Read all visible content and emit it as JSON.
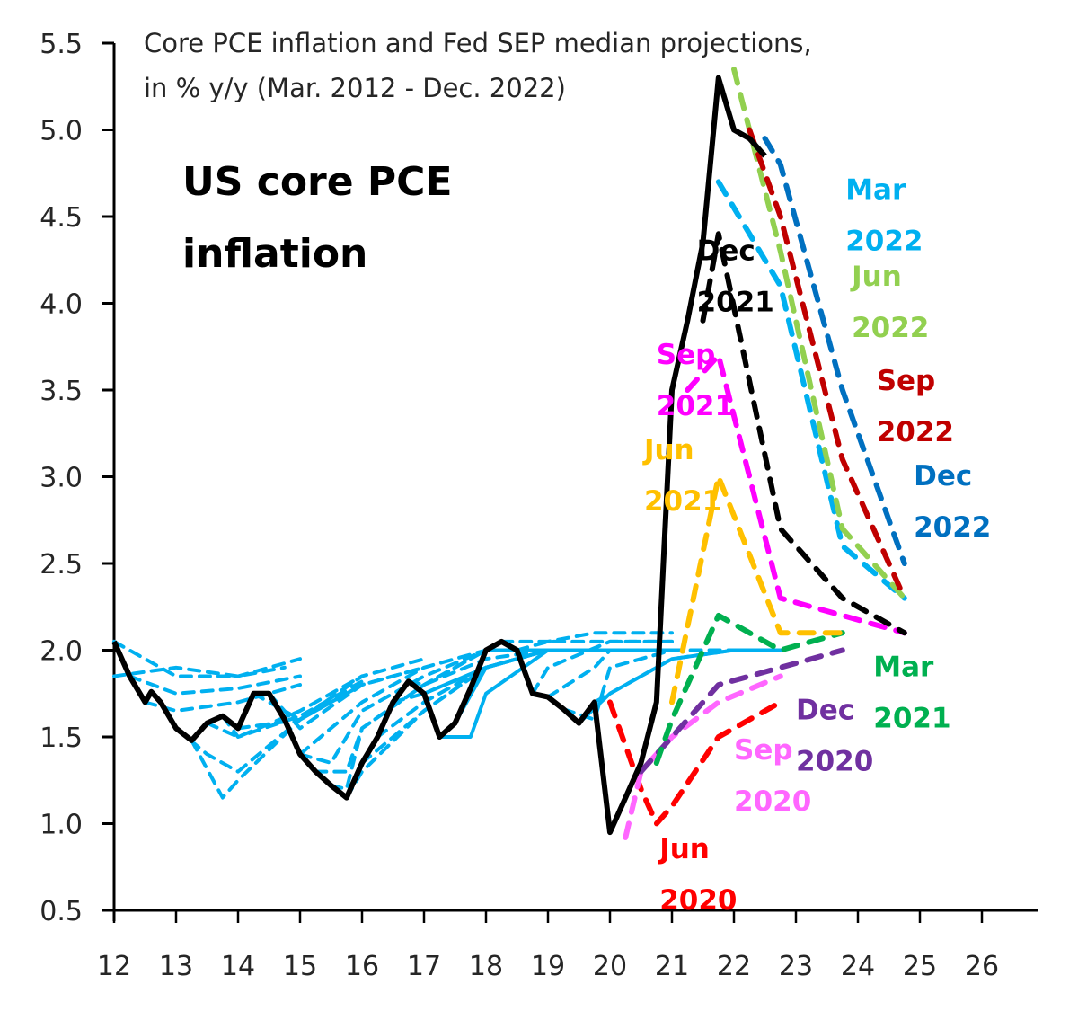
{
  "chart_data": {
    "type": "line",
    "title": "Core PCE inflation and Fed SEP median projections,",
    "subtitle": "in % y/y (Mar. 2012 - Dec. 2022)",
    "annotation": [
      "US core PCE",
      "inflation"
    ],
    "xlabel": "",
    "ylabel": "",
    "xlim": [
      12,
      26.8
    ],
    "ylim": [
      0.5,
      5.5
    ],
    "grid": false,
    "legend": "inline-labels",
    "x_ticks": [
      12,
      13,
      14,
      15,
      16,
      17,
      18,
      19,
      20,
      21,
      22,
      23,
      24,
      25,
      26
    ],
    "x_tick_labels": [
      "12",
      "13",
      "14",
      "15",
      "16",
      "17",
      "18",
      "19",
      "20",
      "21",
      "22",
      "23",
      "24",
      "25",
      "26"
    ],
    "y_ticks": [
      0.5,
      1.0,
      1.5,
      2.0,
      2.5,
      3.0,
      3.5,
      4.0,
      4.5,
      5.0,
      5.5
    ],
    "y_tick_labels": [
      "0.5",
      "1.0",
      "1.5",
      "2.0",
      "2.5",
      "3.0",
      "3.5",
      "4.0",
      "4.5",
      "5.0",
      "5.5"
    ],
    "actual": {
      "name": "US core PCE inflation",
      "color": "#000000",
      "style": "solid",
      "x": [
        12.0,
        12.25,
        12.5,
        12.6,
        12.75,
        13.0,
        13.25,
        13.5,
        13.75,
        14.0,
        14.25,
        14.5,
        14.75,
        15.0,
        15.25,
        15.5,
        15.75,
        16.0,
        16.25,
        16.5,
        16.75,
        17.0,
        17.25,
        17.5,
        17.75,
        18.0,
        18.25,
        18.5,
        18.75,
        19.0,
        19.25,
        19.5,
        19.75,
        20.0,
        20.25,
        20.5,
        20.75,
        21.0,
        21.25,
        21.5,
        21.75,
        22.0,
        22.25,
        22.5
      ],
      "y": [
        2.05,
        1.85,
        1.7,
        1.76,
        1.7,
        1.55,
        1.48,
        1.58,
        1.62,
        1.55,
        1.75,
        1.75,
        1.6,
        1.4,
        1.3,
        1.22,
        1.15,
        1.35,
        1.5,
        1.7,
        1.82,
        1.75,
        1.5,
        1.58,
        1.78,
        2.0,
        2.05,
        2.0,
        1.75,
        1.73,
        1.66,
        1.58,
        1.7,
        0.95,
        1.15,
        1.35,
        1.7,
        3.5,
        3.9,
        4.35,
        5.3,
        5.0,
        4.95,
        4.85
      ]
    },
    "series": [
      {
        "name": "Mar 2012",
        "label": "",
        "color": "#00B0F0",
        "style": "dashed",
        "x": [
          12.0,
          13.0,
          14.0,
          14.75
        ],
        "y": [
          1.85,
          1.9,
          1.85,
          1.9
        ]
      },
      {
        "name": "Jun 2012",
        "label": "",
        "color": "#00B0F0",
        "style": "dashed",
        "x": [
          12.0,
          13.0,
          14.0,
          15.0
        ],
        "y": [
          2.05,
          1.85,
          1.85,
          1.95
        ]
      },
      {
        "name": "Sep 2012",
        "label": "",
        "color": "#00B0F0",
        "style": "dashed",
        "x": [
          12.25,
          13.0,
          14.0,
          15.0
        ],
        "y": [
          1.85,
          1.75,
          1.78,
          1.85
        ]
      },
      {
        "name": "Dec 2012",
        "label": "",
        "color": "#00B0F0",
        "style": "dashed",
        "x": [
          12.5,
          13.0,
          14.0,
          15.0
        ],
        "y": [
          1.7,
          1.65,
          1.7,
          1.8
        ]
      },
      {
        "name": "Mar 2013",
        "label": "",
        "color": "#00B0F0",
        "style": "dashed",
        "x": [
          13.0,
          13.5,
          14.0,
          15.0,
          16.0
        ],
        "y": [
          1.55,
          1.4,
          1.3,
          1.6,
          1.8
        ]
      },
      {
        "name": "Jun 2013",
        "label": "",
        "color": "#00B0F0",
        "style": "dashed",
        "x": [
          13.25,
          13.75,
          14.0,
          15.0,
          16.0
        ],
        "y": [
          1.48,
          1.15,
          1.25,
          1.6,
          1.85
        ]
      },
      {
        "name": "Sep 2013",
        "label": "",
        "color": "#00B0F0",
        "style": "dashed",
        "x": [
          13.5,
          14.0,
          15.0,
          16.0
        ],
        "y": [
          1.58,
          1.5,
          1.65,
          1.85
        ]
      },
      {
        "name": "Dec 2013",
        "label": "",
        "color": "#00B0F0",
        "style": "dashed",
        "x": [
          13.75,
          14.0,
          15.0,
          16.0
        ],
        "y": [
          1.62,
          1.5,
          1.62,
          1.82
        ]
      },
      {
        "name": "Mar 2014",
        "label": "",
        "color": "#00B0F0",
        "style": "dashed",
        "x": [
          14.0,
          15.0,
          16.0,
          17.0
        ],
        "y": [
          1.55,
          1.6,
          1.85,
          1.95
        ]
      },
      {
        "name": "Jun 2014",
        "label": "",
        "color": "#00B0F0",
        "style": "dashed",
        "x": [
          14.25,
          15.0,
          16.0,
          17.0
        ],
        "y": [
          1.75,
          1.6,
          1.8,
          1.9
        ]
      },
      {
        "name": "Sep 2014",
        "label": "",
        "color": "#00B0F0",
        "style": "dashed",
        "x": [
          14.5,
          15.0,
          16.0,
          17.0
        ],
        "y": [
          1.75,
          1.55,
          1.8,
          1.9
        ]
      },
      {
        "name": "Dec 2014",
        "label": "",
        "color": "#00B0F0",
        "style": "dashed",
        "x": [
          14.75,
          15.0,
          16.0,
          17.0,
          18.0
        ],
        "y": [
          1.6,
          1.4,
          1.7,
          1.9,
          2.0
        ]
      },
      {
        "name": "Mar 2015",
        "label": "",
        "color": "#00B0F0",
        "style": "dashed",
        "x": [
          15.0,
          15.5,
          16.0,
          17.0,
          18.0
        ],
        "y": [
          1.4,
          1.35,
          1.65,
          1.85,
          2.0
        ]
      },
      {
        "name": "Jun 2015",
        "label": "",
        "color": "#00B0F0",
        "style": "dashed",
        "x": [
          15.25,
          15.75,
          16.0,
          17.0,
          18.0
        ],
        "y": [
          1.3,
          1.3,
          1.55,
          1.8,
          2.0
        ]
      },
      {
        "name": "Sep 2015",
        "label": "",
        "color": "#00B0F0",
        "style": "dashed",
        "x": [
          15.5,
          15.75,
          16.0,
          17.0,
          18.0
        ],
        "y": [
          1.22,
          1.2,
          1.55,
          1.8,
          2.0
        ]
      },
      {
        "name": "Dec 2015",
        "label": "",
        "color": "#00B0F0",
        "style": "dashed",
        "x": [
          15.75,
          16.0,
          17.0,
          18.0
        ],
        "y": [
          1.15,
          1.3,
          1.65,
          1.9
        ]
      },
      {
        "name": "Mar 2016",
        "label": "",
        "color": "#00B0F0",
        "style": "dashed",
        "x": [
          16.0,
          17.0,
          18.0,
          19.0
        ],
        "y": [
          1.35,
          1.65,
          1.9,
          2.0
        ]
      },
      {
        "name": "Jun 2016",
        "label": "",
        "color": "#00B0F0",
        "style": "dashed",
        "x": [
          16.25,
          17.0,
          18.0,
          19.0
        ],
        "y": [
          1.5,
          1.7,
          1.9,
          2.0
        ]
      },
      {
        "name": "Sep 2016",
        "label": "",
        "color": "#00B0F0",
        "style": "dashed",
        "x": [
          16.5,
          17.0,
          18.0,
          19.0
        ],
        "y": [
          1.7,
          1.75,
          1.9,
          2.0
        ]
      },
      {
        "name": "Dec 2016",
        "label": "",
        "color": "#00B0F0",
        "style": "dashed",
        "x": [
          16.75,
          17.0,
          18.0,
          19.0
        ],
        "y": [
          1.82,
          1.8,
          1.95,
          2.0
        ]
      },
      {
        "name": "Mar 2017",
        "label": "",
        "color": "#00B0F0",
        "style": "solid",
        "x": [
          17.0,
          18.0,
          19.0,
          20.0
        ],
        "y": [
          1.75,
          1.9,
          2.0,
          2.0
        ]
      },
      {
        "name": "Jun 2017",
        "label": "",
        "color": "#00B0F0",
        "style": "solid",
        "x": [
          17.25,
          17.75,
          18.0,
          19.0,
          20.0
        ],
        "y": [
          1.5,
          1.5,
          1.75,
          2.0,
          2.0
        ]
      },
      {
        "name": "Sep 2017",
        "label": "",
        "color": "#00B0F0",
        "style": "solid",
        "x": [
          17.5,
          18.0,
          19.0,
          20.0
        ],
        "y": [
          1.58,
          1.9,
          2.0,
          2.0
        ]
      },
      {
        "name": "Dec 2017",
        "label": "",
        "color": "#00B0F0",
        "style": "solid",
        "x": [
          17.75,
          18.0,
          19.0,
          20.0
        ],
        "y": [
          1.78,
          1.9,
          2.0,
          2.0
        ]
      },
      {
        "name": "Mar 2018",
        "label": "",
        "color": "#00B0F0",
        "style": "solid",
        "x": [
          18.0,
          19.0,
          20.0,
          21.0
        ],
        "y": [
          2.0,
          2.0,
          2.0,
          2.0
        ]
      },
      {
        "name": "Jun 2018",
        "label": "",
        "color": "#00B0F0",
        "style": "dashed",
        "x": [
          18.25,
          19.0,
          19.75,
          20.0,
          21.0
        ],
        "y": [
          2.05,
          2.05,
          2.1,
          2.1,
          2.1
        ]
      },
      {
        "name": "Sep 2018",
        "label": "",
        "color": "#00B0F0",
        "style": "dashed",
        "x": [
          18.5,
          19.0,
          20.0,
          21.0
        ],
        "y": [
          2.0,
          2.05,
          2.05,
          2.05
        ]
      },
      {
        "name": "Dec 2018",
        "label": "",
        "color": "#00B0F0",
        "style": "dashed",
        "x": [
          18.75,
          19.0,
          20.0,
          21.0
        ],
        "y": [
          1.75,
          1.9,
          2.05,
          2.05
        ]
      },
      {
        "name": "Mar 2019",
        "label": "",
        "color": "#00B0F0",
        "style": "dashed",
        "x": [
          19.0,
          19.75,
          20.0,
          21.0
        ],
        "y": [
          1.73,
          1.9,
          2.0,
          2.0
        ]
      },
      {
        "name": "Jun 2019",
        "label": "",
        "color": "#00B0F0",
        "style": "dashed",
        "x": [
          19.25,
          19.75,
          20.0,
          21.0,
          22.0
        ],
        "y": [
          1.66,
          1.6,
          1.9,
          2.0,
          2.0
        ]
      },
      {
        "name": "Sep 2019",
        "label": "",
        "color": "#00B0F0",
        "style": "solid",
        "x": [
          19.5,
          20.0,
          21.0,
          22.0,
          22.75
        ],
        "y": [
          1.58,
          1.75,
          1.95,
          2.0,
          2.0
        ]
      },
      {
        "name": "Dec 2019",
        "label": "",
        "color": "#00B0F0",
        "style": "dashed",
        "x": [
          19.75,
          20.0,
          21.0,
          22.0
        ],
        "y": [
          1.7,
          1.75,
          1.95,
          2.0
        ]
      },
      {
        "name": "Jun 2020",
        "label": "Jun 2020",
        "color": "#FF0000",
        "style": "dashed",
        "x": [
          20.0,
          20.5,
          20.75,
          21.0,
          21.75,
          22.75
        ],
        "y": [
          1.7,
          1.2,
          1.0,
          1.1,
          1.5,
          1.7
        ]
      },
      {
        "name": "Sep 2020",
        "label": "Sep 2020",
        "color": "#FF66FF",
        "style": "dashed",
        "x": [
          20.25,
          20.5,
          21.0,
          21.75,
          22.75
        ],
        "y": [
          0.92,
          1.3,
          1.5,
          1.7,
          1.85
        ]
      },
      {
        "name": "Dec 2020",
        "label": "Dec 2020",
        "color": "#7030A0",
        "style": "dashed",
        "x": [
          20.5,
          21.0,
          21.75,
          22.75,
          23.75
        ],
        "y": [
          1.3,
          1.5,
          1.8,
          1.9,
          2.0
        ]
      },
      {
        "name": "Mar 2021",
        "label": "Mar 2021",
        "color": "#00B050",
        "style": "dashed",
        "x": [
          20.75,
          21.0,
          21.75,
          22.75,
          23.75
        ],
        "y": [
          1.35,
          1.6,
          2.2,
          2.0,
          2.1
        ]
      },
      {
        "name": "Jun 2021",
        "label": "Jun 2021",
        "color": "#FFC000",
        "style": "dashed",
        "x": [
          21.0,
          21.75,
          22.75,
          23.75
        ],
        "y": [
          1.7,
          3.0,
          2.1,
          2.1
        ]
      },
      {
        "name": "Sep 2021",
        "label": "Sep 2021",
        "color": "#FF00FF",
        "style": "dashed",
        "x": [
          21.25,
          21.75,
          22.75,
          23.75,
          24.75
        ],
        "y": [
          3.5,
          3.7,
          2.3,
          2.2,
          2.1
        ]
      },
      {
        "name": "Dec 2021",
        "label": "Dec 2021",
        "color": "#000000",
        "style": "dashed",
        "x": [
          21.5,
          21.75,
          22.75,
          23.75,
          24.75
        ],
        "y": [
          3.9,
          4.4,
          2.7,
          2.3,
          2.1
        ]
      },
      {
        "name": "Mar 2022",
        "label": "Mar 2022",
        "color": "#00B0F0",
        "style": "dashed",
        "x": [
          21.75,
          22.75,
          23.75,
          24.75
        ],
        "y": [
          4.7,
          4.1,
          2.6,
          2.3
        ]
      },
      {
        "name": "Jun 2022",
        "label": "Jun 2022",
        "color": "#92D050",
        "style": "dashed",
        "x": [
          22.0,
          22.75,
          23.75,
          24.75
        ],
        "y": [
          5.35,
          4.3,
          2.7,
          2.3
        ]
      },
      {
        "name": "Sep 2022",
        "label": "Sep 2022",
        "color": "#C00000",
        "style": "dashed",
        "x": [
          22.25,
          22.75,
          23.75,
          24.75
        ],
        "y": [
          5.0,
          4.5,
          3.1,
          2.3
        ]
      },
      {
        "name": "Dec 2022",
        "label": "Dec 2022",
        "color": "#0070C0",
        "style": "dashed",
        "x": [
          22.5,
          22.75,
          23.75,
          24.75
        ],
        "y": [
          4.95,
          4.8,
          3.5,
          2.5
        ]
      }
    ],
    "series_labels": [
      {
        "name": "Dec 2021",
        "line1": "Dec",
        "line2": "2021",
        "color": "#000000",
        "at": [
          21.4,
          4.25
        ]
      },
      {
        "name": "Mar 2022",
        "line1": "Mar",
        "line2": "2022",
        "color": "#00B0F0",
        "at": [
          23.8,
          4.6
        ]
      },
      {
        "name": "Jun 2022",
        "line1": "Jun",
        "line2": "2022",
        "color": "#92D050",
        "at": [
          23.9,
          4.1
        ]
      },
      {
        "name": "Sep 2022",
        "line1": "Sep",
        "line2": "2022",
        "color": "#C00000",
        "at": [
          24.3,
          3.5
        ]
      },
      {
        "name": "Dec 2022",
        "line1": "Dec",
        "line2": "2022",
        "color": "#0070C0",
        "at": [
          24.9,
          2.95
        ]
      },
      {
        "name": "Sep 2021",
        "line1": "Sep",
        "line2": "2021",
        "color": "#FF00FF",
        "at": [
          20.75,
          3.65
        ]
      },
      {
        "name": "Jun 2021",
        "line1": "Jun",
        "line2": "2021",
        "color": "#FFC000",
        "at": [
          20.55,
          3.1
        ]
      },
      {
        "name": "Mar 2021",
        "line1": "Mar",
        "line2": "2021",
        "color": "#00B050",
        "at": [
          24.25,
          1.85
        ]
      },
      {
        "name": "Dec 2020",
        "line1": "Dec",
        "line2": "2020",
        "color": "#7030A0",
        "at": [
          23.0,
          1.6
        ]
      },
      {
        "name": "Sep 2020",
        "line1": "Sep",
        "line2": "2020",
        "color": "#FF66FF",
        "at": [
          22.0,
          1.37
        ]
      },
      {
        "name": "Jun 2020",
        "line1": "Jun",
        "line2": "2020",
        "color": "#FF0000",
        "at": [
          20.8,
          0.8
        ]
      }
    ]
  }
}
